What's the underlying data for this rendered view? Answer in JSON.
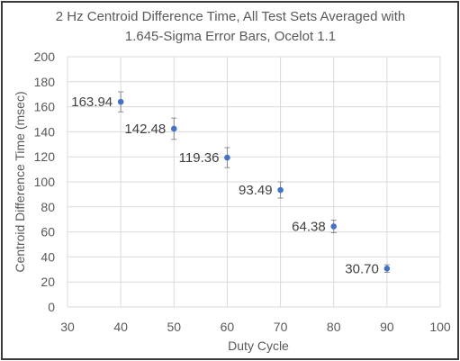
{
  "chart_data": {
    "type": "scatter",
    "title": "2 Hz Centroid Difference Time, All Test Sets Averaged with 1.645-Sigma Error Bars, Ocelot 1.1",
    "title_lines": [
      "2 Hz Centroid Difference Time, All Test Sets Averaged with",
      "1.645-Sigma Error Bars, Ocelot 1.1"
    ],
    "xlabel": "Duty Cycle",
    "ylabel": "Centroid Difference Time (msec)",
    "xlim": [
      30,
      100
    ],
    "ylim": [
      0,
      200
    ],
    "x_ticks": [
      "30",
      "40",
      "50",
      "60",
      "70",
      "80",
      "90",
      "100"
    ],
    "y_ticks": [
      "0",
      "20",
      "40",
      "60",
      "80",
      "100",
      "120",
      "140",
      "160",
      "180",
      "200"
    ],
    "grid": true,
    "legend": "none",
    "series": [
      {
        "color": "#4472c4",
        "x": [
          40,
          50,
          60,
          70,
          80,
          90
        ],
        "y": [
          163.94,
          142.48,
          119.36,
          93.49,
          64.38,
          30.7
        ],
        "error": [
          8,
          8.5,
          8,
          6.5,
          5,
          3
        ],
        "labels": [
          "163.94",
          "142.48",
          "119.36",
          "93.49",
          "64.38",
          "30.70"
        ]
      }
    ]
  }
}
